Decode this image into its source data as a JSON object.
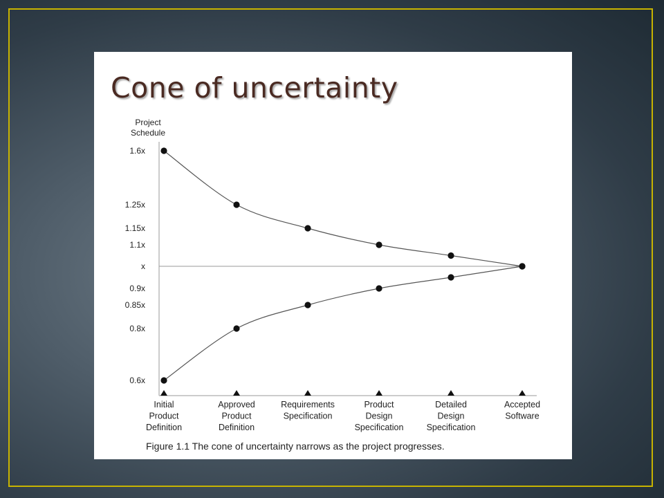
{
  "slide": {
    "title": "Cone of uncertainty"
  },
  "caption": "Figure 1.1   The cone of uncertainty narrows as the project progresses.",
  "colors": {
    "frame": "#c8b400",
    "title": "#4a2a22",
    "ink": "#111111",
    "axis": "#9a9a9a"
  },
  "chart_data": {
    "type": "line",
    "ylabel": [
      "Project",
      "Schedule"
    ],
    "categories": [
      [
        "Initial",
        "Product",
        "Definition"
      ],
      [
        "Approved",
        "Product",
        "Definition"
      ],
      [
        "Requirements",
        "Specification"
      ],
      [
        "Product",
        "Design",
        "Specification"
      ],
      [
        "Detailed",
        "Design",
        "Specification"
      ],
      [
        "Accepted",
        "Software"
      ]
    ],
    "y_ticks": [
      {
        "value": 1.6,
        "label": "1.6x"
      },
      {
        "value": 1.25,
        "label": "1.25x"
      },
      {
        "value": 1.15,
        "label": "1.15x"
      },
      {
        "value": 1.1,
        "label": "1.1x"
      },
      {
        "value": 1.0,
        "label": "x"
      },
      {
        "value": 0.9,
        "label": "0.9x"
      },
      {
        "value": 0.85,
        "label": "0.85x"
      },
      {
        "value": 0.8,
        "label": "0.8x"
      },
      {
        "value": 0.6,
        "label": "0.6x"
      }
    ],
    "series": [
      {
        "values": [
          1.6,
          1.25,
          1.15,
          1.1,
          1.05,
          1.0
        ]
      },
      {
        "values": [
          0.6,
          0.8,
          0.85,
          0.9,
          0.95,
          1.0
        ]
      }
    ],
    "grid": false
  }
}
